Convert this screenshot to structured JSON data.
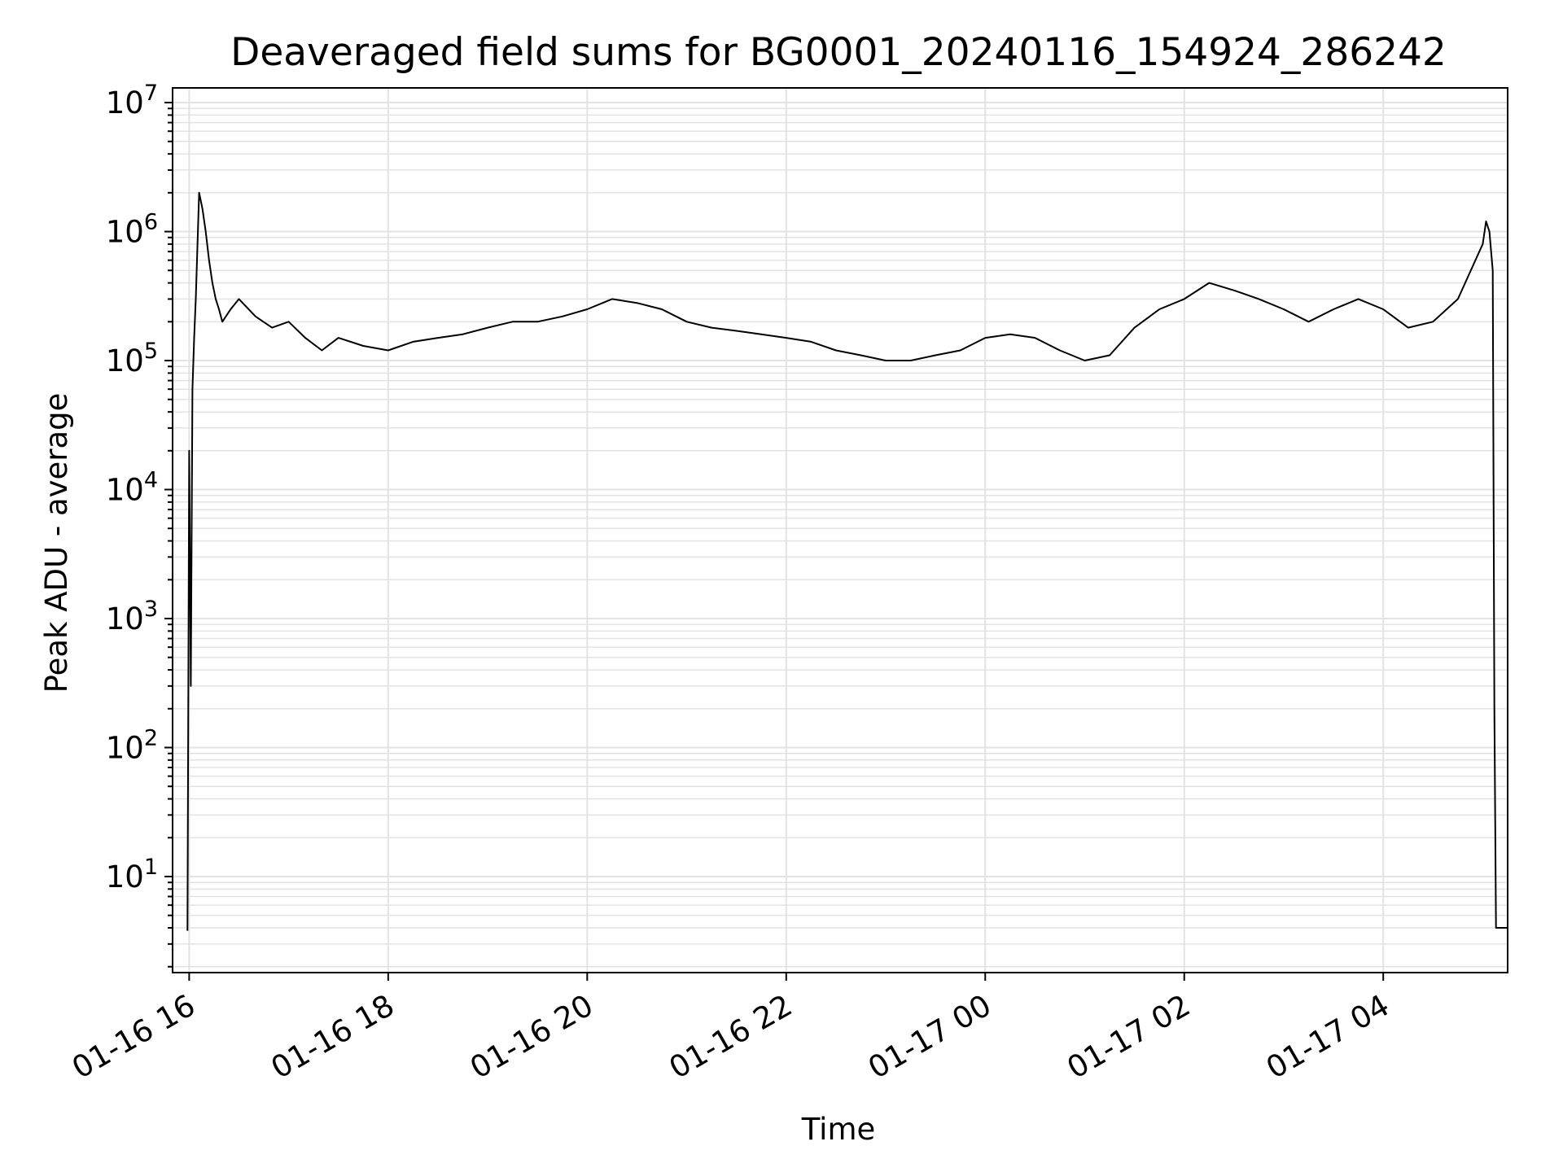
{
  "chart_data": {
    "type": "line",
    "title": "Deaveraged field sums for BG0001_20240116_154924_286242",
    "xlabel": "Time",
    "ylabel": "Peak ADU - average",
    "yscale": "log",
    "grid": true,
    "line_color": "#000000",
    "grid_color": "#e3e3e3",
    "xlim": [
      "2024-01-16 15:50",
      "2024-01-17 05:15"
    ],
    "ylim": [
      1.8,
      13000000
    ],
    "x_ticks": [
      {
        "value": "2024-01-16 16:00",
        "label": "01-16 16"
      },
      {
        "value": "2024-01-16 18:00",
        "label": "01-16 18"
      },
      {
        "value": "2024-01-16 20:00",
        "label": "01-16 20"
      },
      {
        "value": "2024-01-16 22:00",
        "label": "01-16 22"
      },
      {
        "value": "2024-01-17 00:00",
        "label": "01-17 00"
      },
      {
        "value": "2024-01-17 02:00",
        "label": "01-17 02"
      },
      {
        "value": "2024-01-17 04:00",
        "label": "01-17 04"
      }
    ],
    "y_ticks": [
      {
        "value": 10,
        "base": "10",
        "exp": "1"
      },
      {
        "value": 100,
        "base": "10",
        "exp": "2"
      },
      {
        "value": 1000,
        "base": "10",
        "exp": "3"
      },
      {
        "value": 10000,
        "base": "10",
        "exp": "4"
      },
      {
        "value": 100000,
        "base": "10",
        "exp": "5"
      },
      {
        "value": 1000000,
        "base": "10",
        "exp": "6"
      },
      {
        "value": 10000000,
        "base": "10",
        "exp": "7"
      }
    ],
    "series": [
      {
        "x": [
          "2024-01-16 15:59",
          "2024-01-16 16:00",
          "2024-01-16 16:01",
          "2024-01-16 16:02",
          "2024-01-16 16:03",
          "2024-01-16 16:04",
          "2024-01-16 16:06",
          "2024-01-16 16:08",
          "2024-01-16 16:10",
          "2024-01-16 16:12",
          "2024-01-16 16:14",
          "2024-01-16 16:16",
          "2024-01-16 16:18",
          "2024-01-16 16:20",
          "2024-01-16 16:25",
          "2024-01-16 16:30",
          "2024-01-16 16:40",
          "2024-01-16 16:50",
          "2024-01-16 17:00",
          "2024-01-16 17:10",
          "2024-01-16 17:20",
          "2024-01-16 17:30",
          "2024-01-16 17:45",
          "2024-01-16 18:00",
          "2024-01-16 18:15",
          "2024-01-16 18:30",
          "2024-01-16 18:45",
          "2024-01-16 19:00",
          "2024-01-16 19:15",
          "2024-01-16 19:30",
          "2024-01-16 19:45",
          "2024-01-16 20:00",
          "2024-01-16 20:15",
          "2024-01-16 20:30",
          "2024-01-16 20:45",
          "2024-01-16 21:00",
          "2024-01-16 21:15",
          "2024-01-16 21:30",
          "2024-01-16 21:45",
          "2024-01-16 22:00",
          "2024-01-16 22:15",
          "2024-01-16 22:30",
          "2024-01-16 22:45",
          "2024-01-16 23:00",
          "2024-01-16 23:15",
          "2024-01-16 23:30",
          "2024-01-16 23:45",
          "2024-01-17 00:00",
          "2024-01-17 00:15",
          "2024-01-17 00:30",
          "2024-01-17 00:45",
          "2024-01-17 01:00",
          "2024-01-17 01:15",
          "2024-01-17 01:30",
          "2024-01-17 01:45",
          "2024-01-17 02:00",
          "2024-01-17 02:15",
          "2024-01-17 02:30",
          "2024-01-17 02:45",
          "2024-01-17 03:00",
          "2024-01-17 03:15",
          "2024-01-17 03:30",
          "2024-01-17 03:45",
          "2024-01-17 04:00",
          "2024-01-17 04:15",
          "2024-01-17 04:30",
          "2024-01-17 04:45",
          "2024-01-17 05:00",
          "2024-01-17 05:02",
          "2024-01-17 05:04",
          "2024-01-17 05:06",
          "2024-01-17 05:07",
          "2024-01-17 05:08",
          "2024-01-17 05:15"
        ],
        "y": [
          3.8,
          20000,
          300,
          60000,
          150000,
          300000,
          2000000,
          1500000,
          1000000,
          600000,
          400000,
          300000,
          250000,
          200000,
          250000,
          300000,
          220000,
          180000,
          200000,
          150000,
          120000,
          150000,
          130000,
          120000,
          140000,
          150000,
          160000,
          180000,
          200000,
          200000,
          220000,
          250000,
          300000,
          280000,
          250000,
          200000,
          180000,
          170000,
          160000,
          150000,
          140000,
          120000,
          110000,
          100000,
          100000,
          110000,
          120000,
          150000,
          160000,
          150000,
          120000,
          100000,
          110000,
          180000,
          250000,
          300000,
          400000,
          350000,
          300000,
          250000,
          200000,
          250000,
          300000,
          250000,
          180000,
          200000,
          300000,
          800000,
          1200000,
          1000000,
          500000,
          200,
          4,
          4
        ]
      }
    ]
  }
}
